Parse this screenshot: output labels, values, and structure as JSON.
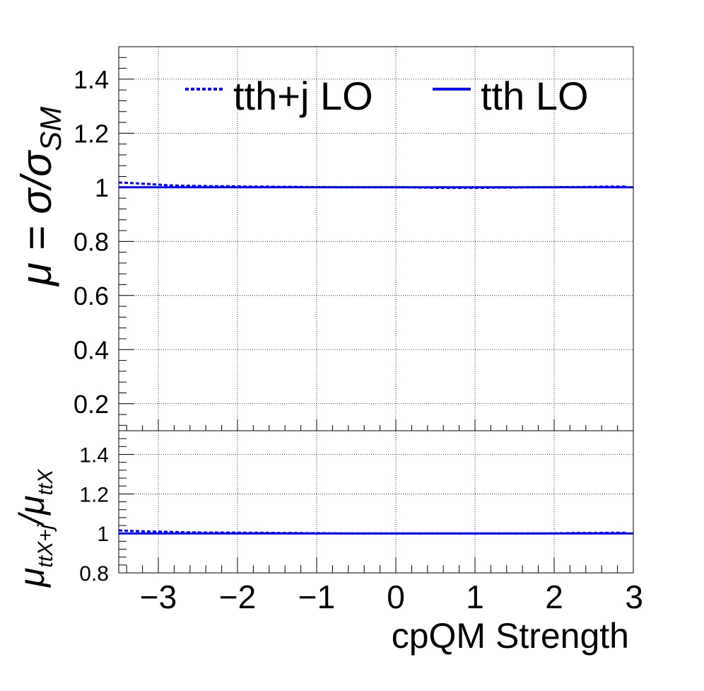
{
  "chart_data": [
    {
      "type": "line",
      "panel": "main",
      "ylabel": "μ = σ/σ",
      "ylabel_sub": "SM",
      "xlim": [
        -3.5,
        3.0
      ],
      "ylim": [
        0.1,
        1.52
      ],
      "yticks": [
        0.2,
        0.4,
        0.6,
        0.8,
        1.0,
        1.2,
        1.4
      ],
      "ytick_labels": [
        "0.2",
        "0.4",
        "0.6",
        "0.8",
        "1",
        "1.2",
        "1.4"
      ],
      "grid": true,
      "legend_position": "top",
      "legend": [
        "tth+j LO",
        "tth LO"
      ],
      "series": [
        {
          "name": "tth+j LO",
          "style": "dashed",
          "color": "#0000ff",
          "x": [
            -3.5,
            -3.3,
            -3.1,
            -2.9,
            -2.7,
            -2.5,
            -2.3,
            -2.1,
            -1.9,
            -1.7,
            -1.5,
            -1.3,
            -1.1,
            -0.9,
            -0.7,
            -0.5,
            -0.3,
            -0.1,
            0.1,
            0.3,
            0.5,
            0.7,
            0.9,
            1.1,
            1.3,
            1.5,
            1.7,
            1.9,
            2.1,
            2.3,
            2.5,
            2.7,
            2.9
          ],
          "values": [
            1.018,
            1.015,
            1.012,
            1.008,
            1.006,
            1.005,
            1.004,
            1.004,
            1.003,
            1.003,
            1.002,
            1.002,
            1.001,
            1.001,
            1.0,
            1.0,
            1.0,
            1.0,
            1.0,
            0.999,
            0.998,
            0.998,
            0.998,
            0.998,
            0.999,
            0.999,
            1.0,
            1.0,
            1.001,
            1.001,
            1.002,
            1.003,
            1.003
          ]
        },
        {
          "name": "tth LO",
          "style": "solid",
          "color": "#0000ff",
          "x": [
            -3.5,
            3.0
          ],
          "values": [
            1.0,
            1.0
          ]
        }
      ]
    },
    {
      "type": "line",
      "panel": "ratio",
      "ylabel_parts": [
        "μ",
        "ttX+j",
        "/μ",
        "ttX"
      ],
      "xlabel": "cpQM Strength",
      "xlim": [
        -3.5,
        3.0
      ],
      "ylim": [
        0.8,
        1.52
      ],
      "xticks": [
        -3,
        -2,
        -1,
        0,
        1,
        2,
        3
      ],
      "xtick_labels": [
        "−3",
        "−2",
        "−1",
        "0",
        "1",
        "2",
        "3"
      ],
      "yticks": [
        0.8,
        1.0,
        1.2,
        1.4
      ],
      "ytick_labels": [
        "0.8",
        "1",
        "1.2",
        "1.4"
      ],
      "grid": true,
      "series": [
        {
          "name": "tth+j LO",
          "style": "dashed",
          "color": "#0000ff",
          "x": [
            -3.5,
            -3.3,
            -3.1,
            -2.9,
            -2.7,
            -2.5,
            -2.3,
            -2.1,
            -1.9,
            -1.7,
            -1.5,
            -1.3,
            -1.1,
            -0.9,
            -0.7,
            -0.5,
            -0.3,
            -0.1,
            0.1,
            0.3,
            0.5,
            0.7,
            0.9,
            1.1,
            1.3,
            1.5,
            1.7,
            1.9,
            2.1,
            2.3,
            2.5,
            2.7,
            2.9
          ],
          "values": [
            1.015,
            1.012,
            1.01,
            1.008,
            1.006,
            1.005,
            1.004,
            1.004,
            1.003,
            1.003,
            1.002,
            1.002,
            1.001,
            1.001,
            1.0,
            1.0,
            1.0,
            1.0,
            1.0,
            1.0,
            1.0,
            1.0,
            1.0,
            1.0,
            1.0,
            1.0,
            1.0,
            1.0,
            1.001,
            1.002,
            1.002,
            1.003,
            1.003
          ]
        },
        {
          "name": "tth LO",
          "style": "solid",
          "color": "#0000ff",
          "x": [
            -3.5,
            3.0
          ],
          "values": [
            1.0,
            1.0
          ]
        }
      ]
    }
  ]
}
